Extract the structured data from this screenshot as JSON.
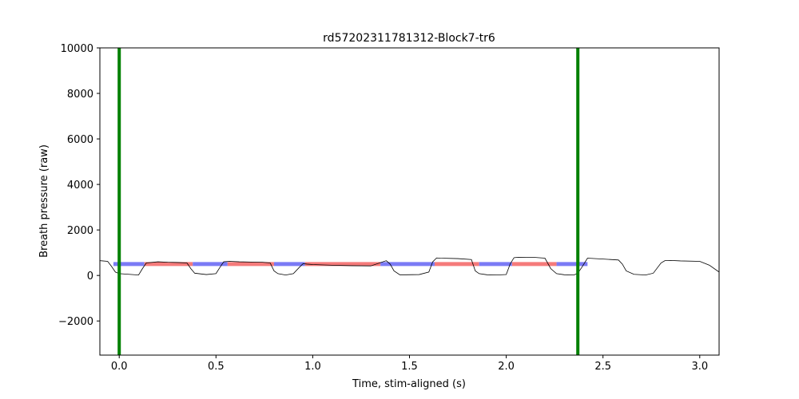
{
  "chart_data": {
    "type": "line",
    "title": "rd57202311781312-Block7-tr6",
    "xlabel": "Time, stim-aligned (s)",
    "ylabel": "Breath pressure (raw)",
    "xlim": [
      -0.1,
      3.1
    ],
    "ylim": [
      -3500,
      10000
    ],
    "xticks": [
      0.0,
      0.5,
      1.0,
      1.5,
      2.0,
      2.5,
      3.0
    ],
    "xtick_labels": [
      "0.0",
      "0.5",
      "1.0",
      "1.5",
      "2.0",
      "2.5",
      "3.0"
    ],
    "yticks": [
      -2000,
      0,
      2000,
      4000,
      6000,
      8000,
      10000
    ],
    "ytick_labels": [
      "−2000",
      "0",
      "2000",
      "4000",
      "6000",
      "8000",
      "10000"
    ],
    "grid": false,
    "colors": {
      "trace": "#000000",
      "inspiration": "#7b7bf5",
      "expiration": "#f57b7b",
      "markers": "#008000"
    },
    "vertical_markers": [
      0.0,
      2.37
    ],
    "segment_level": 500,
    "segments": [
      {
        "kind": "inspiration",
        "start": -0.03,
        "end": 0.13
      },
      {
        "kind": "expiration",
        "start": 0.13,
        "end": 0.38
      },
      {
        "kind": "inspiration",
        "start": 0.38,
        "end": 0.56
      },
      {
        "kind": "expiration",
        "start": 0.56,
        "end": 0.8
      },
      {
        "kind": "inspiration",
        "start": 0.8,
        "end": 0.96
      },
      {
        "kind": "expiration",
        "start": 0.96,
        "end": 1.35
      },
      {
        "kind": "inspiration",
        "start": 1.35,
        "end": 1.63
      },
      {
        "kind": "expiration",
        "start": 1.63,
        "end": 1.86
      },
      {
        "kind": "inspiration",
        "start": 1.86,
        "end": 2.03
      },
      {
        "kind": "expiration",
        "start": 2.03,
        "end": 2.26
      },
      {
        "kind": "inspiration",
        "start": 2.26,
        "end": 2.42
      }
    ],
    "trace": {
      "x": [
        -0.1,
        -0.06,
        -0.04,
        -0.02,
        0.0,
        0.05,
        0.1,
        0.12,
        0.14,
        0.2,
        0.25,
        0.3,
        0.35,
        0.37,
        0.39,
        0.45,
        0.5,
        0.52,
        0.54,
        0.57,
        0.62,
        0.68,
        0.74,
        0.78,
        0.8,
        0.82,
        0.86,
        0.9,
        0.93,
        0.95,
        0.97,
        1.0,
        1.1,
        1.2,
        1.3,
        1.38,
        1.4,
        1.42,
        1.45,
        1.48,
        1.55,
        1.6,
        1.62,
        1.64,
        1.66,
        1.75,
        1.82,
        1.84,
        1.86,
        1.9,
        1.95,
        2.0,
        2.02,
        2.04,
        2.06,
        2.15,
        2.2,
        2.23,
        2.26,
        2.3,
        2.35,
        2.37,
        2.39,
        2.42,
        2.5,
        2.58,
        2.6,
        2.62,
        2.66,
        2.72,
        2.76,
        2.8,
        2.82,
        2.85,
        2.9,
        3.0,
        3.05,
        3.1
      ],
      "y": [
        650,
        620,
        400,
        150,
        80,
        50,
        20,
        300,
        550,
        600,
        580,
        570,
        550,
        300,
        100,
        40,
        80,
        350,
        600,
        620,
        600,
        590,
        580,
        550,
        200,
        80,
        20,
        80,
        350,
        520,
        500,
        480,
        450,
        430,
        420,
        650,
        500,
        200,
        30,
        30,
        40,
        150,
        600,
        770,
        760,
        740,
        700,
        200,
        80,
        30,
        20,
        40,
        500,
        780,
        800,
        790,
        760,
        300,
        80,
        30,
        20,
        100,
        350,
        760,
        720,
        680,
        500,
        200,
        50,
        20,
        100,
        550,
        650,
        660,
        640,
        620,
        450,
        150
      ]
    }
  }
}
